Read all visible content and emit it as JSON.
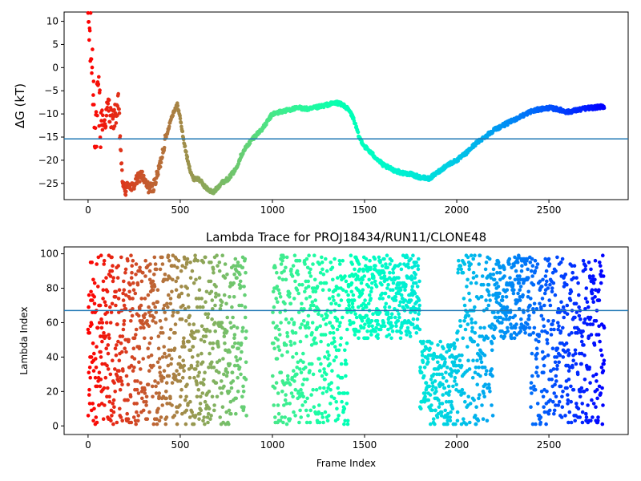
{
  "chart_data": [
    {
      "type": "scatter",
      "title": "",
      "xlabel": "",
      "ylabel": "ΔG (kT)",
      "xlim": [
        -130,
        2930
      ],
      "ylim": [
        -28.5,
        12
      ],
      "xticks": [
        0,
        500,
        1000,
        1500,
        2000,
        2500
      ],
      "yticks": [
        -25,
        -20,
        -15,
        -10,
        -5,
        0,
        5,
        10
      ],
      "hline": -15.4,
      "hline_color": "#1f77b4",
      "colormap": "rainbow (reversed: red at frame 0, violet at frame 2800)",
      "grid": false,
      "path": [
        [
          0,
          10.8
        ],
        [
          10,
          6
        ],
        [
          20,
          2
        ],
        [
          30,
          -5
        ],
        [
          40,
          -13
        ],
        [
          55,
          -9
        ],
        [
          70,
          -11
        ],
        [
          90,
          -12
        ],
        [
          110,
          -8
        ],
        [
          130,
          -12
        ],
        [
          150,
          -10
        ],
        [
          165,
          -8
        ],
        [
          175,
          -16
        ],
        [
          185,
          -24
        ],
        [
          200,
          -27
        ],
        [
          220,
          -25
        ],
        [
          240,
          -26
        ],
        [
          270,
          -24
        ],
        [
          290,
          -23
        ],
        [
          310,
          -25
        ],
        [
          330,
          -26
        ],
        [
          350,
          -26
        ],
        [
          370,
          -24
        ],
        [
          390,
          -21
        ],
        [
          410,
          -17
        ],
        [
          430,
          -14
        ],
        [
          450,
          -11
        ],
        [
          470,
          -9
        ],
        [
          485,
          -8
        ],
        [
          500,
          -11
        ],
        [
          520,
          -16
        ],
        [
          545,
          -21
        ],
        [
          570,
          -24
        ],
        [
          600,
          -24
        ],
        [
          640,
          -26
        ],
        [
          680,
          -27
        ],
        [
          720,
          -25
        ],
        [
          760,
          -24
        ],
        [
          800,
          -22
        ],
        [
          830,
          -19
        ],
        [
          860,
          -17
        ],
        [
          900,
          -15
        ],
        [
          950,
          -13
        ],
        [
          1000,
          -10
        ],
        [
          1050,
          -9.5
        ],
        [
          1100,
          -9
        ],
        [
          1150,
          -8.7
        ],
        [
          1200,
          -9
        ],
        [
          1250,
          -8.5
        ],
        [
          1300,
          -8
        ],
        [
          1350,
          -7.6
        ],
        [
          1390,
          -8.2
        ],
        [
          1420,
          -9.5
        ],
        [
          1440,
          -11
        ],
        [
          1470,
          -15
        ],
        [
          1500,
          -17
        ],
        [
          1550,
          -19
        ],
        [
          1600,
          -21
        ],
        [
          1650,
          -22
        ],
        [
          1700,
          -22.7
        ],
        [
          1750,
          -23
        ],
        [
          1800,
          -23.7
        ],
        [
          1850,
          -24
        ],
        [
          1900,
          -22.5
        ],
        [
          1950,
          -21
        ],
        [
          2000,
          -20
        ],
        [
          2050,
          -18.5
        ],
        [
          2100,
          -16.5
        ],
        [
          2150,
          -15
        ],
        [
          2200,
          -13.5
        ],
        [
          2250,
          -12.5
        ],
        [
          2300,
          -11.5
        ],
        [
          2350,
          -10.5
        ],
        [
          2400,
          -9.5
        ],
        [
          2450,
          -9
        ],
        [
          2500,
          -8.7
        ],
        [
          2550,
          -9
        ],
        [
          2600,
          -9.6
        ],
        [
          2650,
          -9.2
        ],
        [
          2700,
          -8.8
        ],
        [
          2750,
          -8.6
        ],
        [
          2800,
          -8.4
        ]
      ]
    },
    {
      "type": "scatter",
      "title": "Lambda Trace for PROJ18434/RUN11/CLONE48",
      "xlabel": "Frame Index",
      "ylabel": "Lambda Index",
      "xlim": [
        -130,
        2930
      ],
      "ylim": [
        -5,
        104
      ],
      "xticks": [
        0,
        500,
        1000,
        1500,
        2000,
        2500
      ],
      "yticks": [
        0,
        20,
        40,
        60,
        80,
        100
      ],
      "hline": 67,
      "hline_color": "#1f77b4",
      "colormap": "rainbow (reversed: red at frame 0, violet at frame 2800)",
      "grid": false,
      "empty_bands": [
        [
          860,
          1000,
          0,
          100
        ],
        [
          1410,
          1800,
          0,
          50
        ],
        [
          1720,
          1850,
          0,
          8
        ],
        [
          1800,
          2000,
          50,
          100
        ],
        [
          2200,
          2400,
          0,
          50
        ]
      ],
      "n_points": 2800
    }
  ]
}
